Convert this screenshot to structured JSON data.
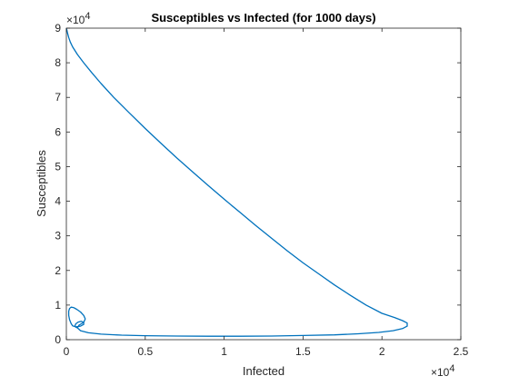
{
  "chart_data": {
    "type": "line",
    "title": "Susceptibles vs Infected (for 1000 days)",
    "xlabel": "Infected",
    "ylabel": "Susceptibles",
    "xlim": [
      0,
      25000
    ],
    "ylim": [
      0,
      90000
    ],
    "x_ticks": [
      0,
      5000,
      10000,
      15000,
      20000,
      25000
    ],
    "x_tick_labels": [
      "0",
      "0.5",
      "1",
      "1.5",
      "2",
      "2.5"
    ],
    "y_ticks": [
      0,
      10000,
      20000,
      30000,
      40000,
      50000,
      60000,
      70000,
      80000,
      90000
    ],
    "y_tick_labels": [
      "0",
      "1",
      "2",
      "3",
      "4",
      "5",
      "6",
      "7",
      "8",
      "9"
    ],
    "x_exponent": {
      "base": "×10",
      "power": "4"
    },
    "y_exponent": {
      "base": "×10",
      "power": "4"
    },
    "grid": false,
    "box": true,
    "series": [
      {
        "color": "#0072BD",
        "x": [
          0,
          30,
          60,
          100,
          150,
          250,
          400,
          700,
          1100,
          1600,
          2200,
          3000,
          4000,
          5000,
          6000,
          7000,
          8000,
          9000,
          10000,
          11000,
          12000,
          13000,
          14000,
          15000,
          16000,
          17000,
          18000,
          19000,
          20000,
          20800,
          21300,
          21600,
          21600,
          21300,
          20700,
          19800,
          18500,
          17000,
          15000,
          13000,
          11000,
          9000,
          7000,
          5000,
          3500,
          2200,
          1400,
          900,
          700,
          800,
          1100,
          1200,
          1100,
          900,
          650,
          450,
          300,
          200,
          150,
          150,
          200,
          300,
          400,
          600,
          900,
          1100,
          1100,
          950,
          750,
          600,
          550,
          600,
          700
        ],
        "y": [
          90000,
          89500,
          88900,
          88200,
          87300,
          86000,
          84600,
          82400,
          80000,
          77200,
          74000,
          70000,
          65500,
          61000,
          56700,
          52500,
          48500,
          44500,
          40600,
          36800,
          33000,
          29300,
          25700,
          22200,
          19000,
          15800,
          12800,
          10000,
          7600,
          6400,
          5500,
          4800,
          3900,
          3200,
          2600,
          2100,
          1700,
          1400,
          1200,
          1050,
          1000,
          1000,
          1050,
          1150,
          1300,
          1600,
          2000,
          2600,
          3400,
          4200,
          5000,
          6000,
          7000,
          8000,
          8800,
          9300,
          9400,
          9000,
          8200,
          7000,
          5800,
          4700,
          4000,
          3700,
          3900,
          4400,
          5000,
          5300,
          5100,
          4600,
          4000,
          3600,
          3400
        ]
      }
    ]
  }
}
